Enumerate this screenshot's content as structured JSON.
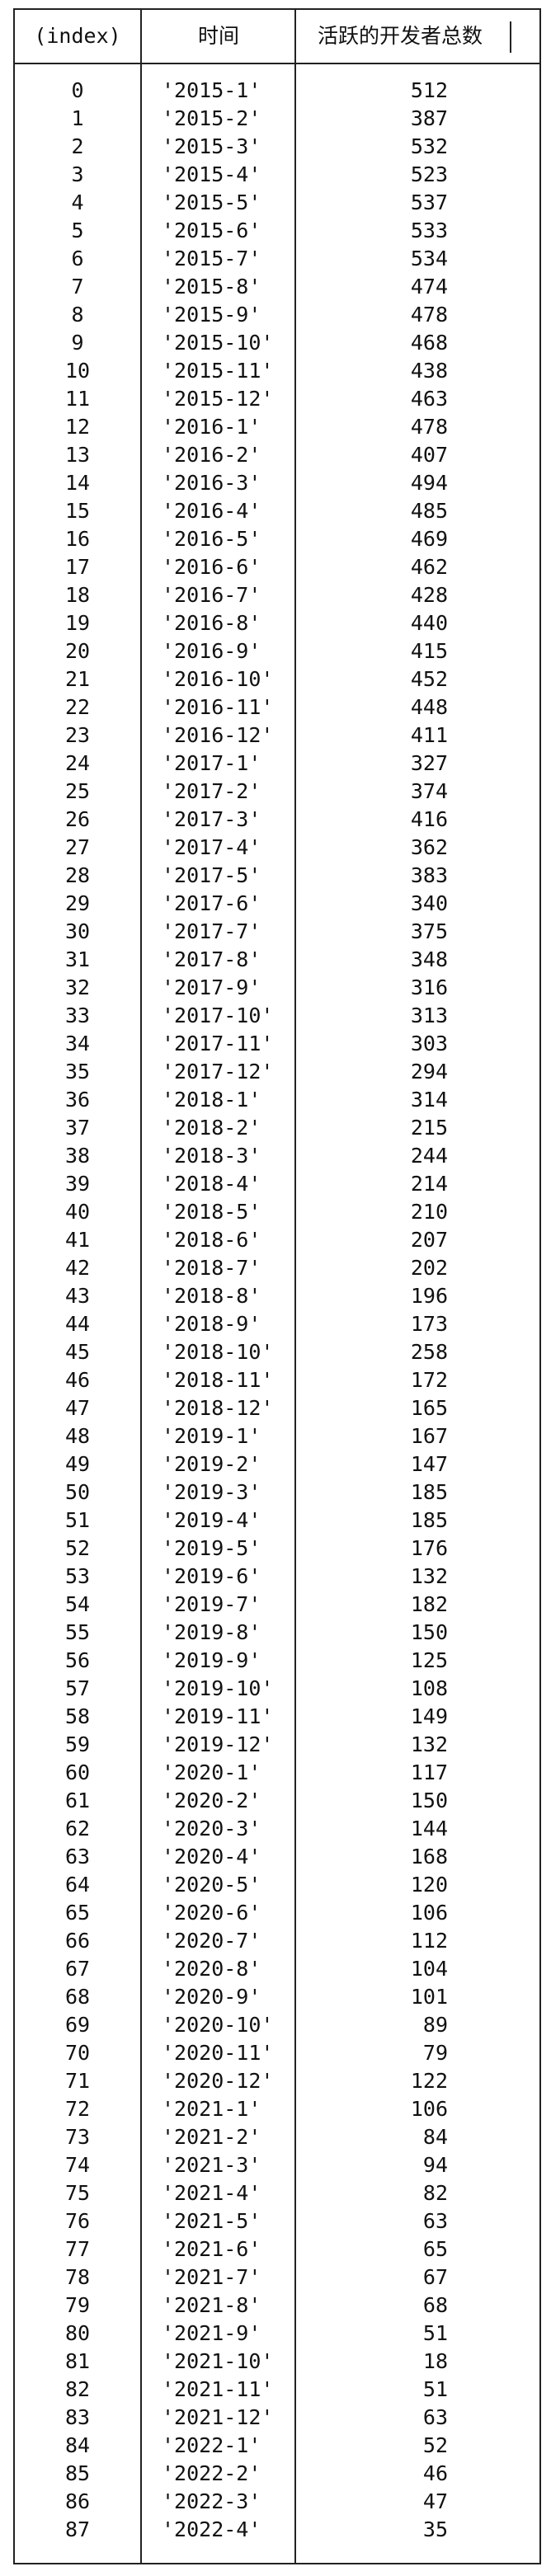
{
  "table": {
    "headers": {
      "index": "(index)",
      "time": "时间",
      "count": "活跃的开发者总数"
    },
    "rows": [
      {
        "index": "0",
        "time": "'2015-1'",
        "count": "512"
      },
      {
        "index": "1",
        "time": "'2015-2'",
        "count": "387"
      },
      {
        "index": "2",
        "time": "'2015-3'",
        "count": "532"
      },
      {
        "index": "3",
        "time": "'2015-4'",
        "count": "523"
      },
      {
        "index": "4",
        "time": "'2015-5'",
        "count": "537"
      },
      {
        "index": "5",
        "time": "'2015-6'",
        "count": "533"
      },
      {
        "index": "6",
        "time": "'2015-7'",
        "count": "534"
      },
      {
        "index": "7",
        "time": "'2015-8'",
        "count": "474"
      },
      {
        "index": "8",
        "time": "'2015-9'",
        "count": "478"
      },
      {
        "index": "9",
        "time": "'2015-10'",
        "count": "468"
      },
      {
        "index": "10",
        "time": "'2015-11'",
        "count": "438"
      },
      {
        "index": "11",
        "time": "'2015-12'",
        "count": "463"
      },
      {
        "index": "12",
        "time": "'2016-1'",
        "count": "478"
      },
      {
        "index": "13",
        "time": "'2016-2'",
        "count": "407"
      },
      {
        "index": "14",
        "time": "'2016-3'",
        "count": "494"
      },
      {
        "index": "15",
        "time": "'2016-4'",
        "count": "485"
      },
      {
        "index": "16",
        "time": "'2016-5'",
        "count": "469"
      },
      {
        "index": "17",
        "time": "'2016-6'",
        "count": "462"
      },
      {
        "index": "18",
        "time": "'2016-7'",
        "count": "428"
      },
      {
        "index": "19",
        "time": "'2016-8'",
        "count": "440"
      },
      {
        "index": "20",
        "time": "'2016-9'",
        "count": "415"
      },
      {
        "index": "21",
        "time": "'2016-10'",
        "count": "452"
      },
      {
        "index": "22",
        "time": "'2016-11'",
        "count": "448"
      },
      {
        "index": "23",
        "time": "'2016-12'",
        "count": "411"
      },
      {
        "index": "24",
        "time": "'2017-1'",
        "count": "327"
      },
      {
        "index": "25",
        "time": "'2017-2'",
        "count": "374"
      },
      {
        "index": "26",
        "time": "'2017-3'",
        "count": "416"
      },
      {
        "index": "27",
        "time": "'2017-4'",
        "count": "362"
      },
      {
        "index": "28",
        "time": "'2017-5'",
        "count": "383"
      },
      {
        "index": "29",
        "time": "'2017-6'",
        "count": "340"
      },
      {
        "index": "30",
        "time": "'2017-7'",
        "count": "375"
      },
      {
        "index": "31",
        "time": "'2017-8'",
        "count": "348"
      },
      {
        "index": "32",
        "time": "'2017-9'",
        "count": "316"
      },
      {
        "index": "33",
        "time": "'2017-10'",
        "count": "313"
      },
      {
        "index": "34",
        "time": "'2017-11'",
        "count": "303"
      },
      {
        "index": "35",
        "time": "'2017-12'",
        "count": "294"
      },
      {
        "index": "36",
        "time": "'2018-1'",
        "count": "314"
      },
      {
        "index": "37",
        "time": "'2018-2'",
        "count": "215"
      },
      {
        "index": "38",
        "time": "'2018-3'",
        "count": "244"
      },
      {
        "index": "39",
        "time": "'2018-4'",
        "count": "214"
      },
      {
        "index": "40",
        "time": "'2018-5'",
        "count": "210"
      },
      {
        "index": "41",
        "time": "'2018-6'",
        "count": "207"
      },
      {
        "index": "42",
        "time": "'2018-7'",
        "count": "202"
      },
      {
        "index": "43",
        "time": "'2018-8'",
        "count": "196"
      },
      {
        "index": "44",
        "time": "'2018-9'",
        "count": "173"
      },
      {
        "index": "45",
        "time": "'2018-10'",
        "count": "258"
      },
      {
        "index": "46",
        "time": "'2018-11'",
        "count": "172"
      },
      {
        "index": "47",
        "time": "'2018-12'",
        "count": "165"
      },
      {
        "index": "48",
        "time": "'2019-1'",
        "count": "167"
      },
      {
        "index": "49",
        "time": "'2019-2'",
        "count": "147"
      },
      {
        "index": "50",
        "time": "'2019-3'",
        "count": "185"
      },
      {
        "index": "51",
        "time": "'2019-4'",
        "count": "185"
      },
      {
        "index": "52",
        "time": "'2019-5'",
        "count": "176"
      },
      {
        "index": "53",
        "time": "'2019-6'",
        "count": "132"
      },
      {
        "index": "54",
        "time": "'2019-7'",
        "count": "182"
      },
      {
        "index": "55",
        "time": "'2019-8'",
        "count": "150"
      },
      {
        "index": "56",
        "time": "'2019-9'",
        "count": "125"
      },
      {
        "index": "57",
        "time": "'2019-10'",
        "count": "108"
      },
      {
        "index": "58",
        "time": "'2019-11'",
        "count": "149"
      },
      {
        "index": "59",
        "time": "'2019-12'",
        "count": "132"
      },
      {
        "index": "60",
        "time": "'2020-1'",
        "count": "117"
      },
      {
        "index": "61",
        "time": "'2020-2'",
        "count": "150"
      },
      {
        "index": "62",
        "time": "'2020-3'",
        "count": "144"
      },
      {
        "index": "63",
        "time": "'2020-4'",
        "count": "168"
      },
      {
        "index": "64",
        "time": "'2020-5'",
        "count": "120"
      },
      {
        "index": "65",
        "time": "'2020-6'",
        "count": "106"
      },
      {
        "index": "66",
        "time": "'2020-7'",
        "count": "112"
      },
      {
        "index": "67",
        "time": "'2020-8'",
        "count": "104"
      },
      {
        "index": "68",
        "time": "'2020-9'",
        "count": "101"
      },
      {
        "index": "69",
        "time": "'2020-10'",
        "count": "89"
      },
      {
        "index": "70",
        "time": "'2020-11'",
        "count": "79"
      },
      {
        "index": "71",
        "time": "'2020-12'",
        "count": "122"
      },
      {
        "index": "72",
        "time": "'2021-1'",
        "count": "106"
      },
      {
        "index": "73",
        "time": "'2021-2'",
        "count": "84"
      },
      {
        "index": "74",
        "time": "'2021-3'",
        "count": "94"
      },
      {
        "index": "75",
        "time": "'2021-4'",
        "count": "82"
      },
      {
        "index": "76",
        "time": "'2021-5'",
        "count": "63"
      },
      {
        "index": "77",
        "time": "'2021-6'",
        "count": "65"
      },
      {
        "index": "78",
        "time": "'2021-7'",
        "count": "67"
      },
      {
        "index": "79",
        "time": "'2021-8'",
        "count": "68"
      },
      {
        "index": "80",
        "time": "'2021-9'",
        "count": "51"
      },
      {
        "index": "81",
        "time": "'2021-10'",
        "count": "18"
      },
      {
        "index": "82",
        "time": "'2021-11'",
        "count": "51"
      },
      {
        "index": "83",
        "time": "'2021-12'",
        "count": "63"
      },
      {
        "index": "84",
        "time": "'2022-1'",
        "count": "52"
      },
      {
        "index": "85",
        "time": "'2022-2'",
        "count": "46"
      },
      {
        "index": "86",
        "time": "'2022-3'",
        "count": "47"
      },
      {
        "index": "87",
        "time": "'2022-4'",
        "count": "35"
      }
    ]
  }
}
